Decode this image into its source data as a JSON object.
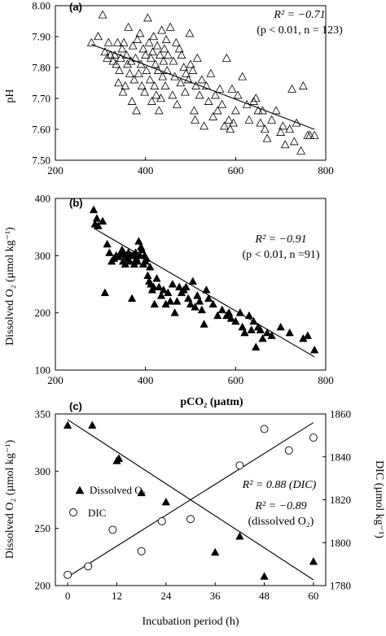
{
  "chart_data": [
    {
      "type": "scatter",
      "panel_label": "(a)",
      "xlim": [
        200,
        800
      ],
      "ylim": [
        7.5,
        8.0
      ],
      "xticks": [
        "200",
        "400",
        "600",
        "800"
      ],
      "yticks": [
        "7.50",
        "7.60",
        "7.70",
        "7.80",
        "7.90",
        "8.00"
      ],
      "ylabel": "pH",
      "annotations": [
        "R² = −0.71",
        "(p < 0.01, n = 123)"
      ],
      "fit_line": [
        [
          280,
          7.875
        ],
        [
          775,
          7.6
        ]
      ],
      "series": [
        {
          "marker": "open-triangle",
          "points": [
            [
              280,
              7.88
            ],
            [
              295,
              7.9
            ],
            [
              305,
              7.97
            ],
            [
              310,
              7.85
            ],
            [
              315,
              7.83
            ],
            [
              318,
              7.88
            ],
            [
              322,
              7.84
            ],
            [
              328,
              7.82
            ],
            [
              332,
              7.84
            ],
            [
              335,
              7.81
            ],
            [
              338,
              7.88
            ],
            [
              340,
              7.75
            ],
            [
              342,
              7.79
            ],
            [
              345,
              7.83
            ],
            [
              348,
              7.86
            ],
            [
              350,
              7.72
            ],
            [
              352,
              7.88
            ],
            [
              355,
              7.74
            ],
            [
              358,
              7.84
            ],
            [
              360,
              7.81
            ],
            [
              362,
              7.93
            ],
            [
              365,
              7.78
            ],
            [
              368,
              7.82
            ],
            [
              370,
              7.69
            ],
            [
              372,
              7.87
            ],
            [
              375,
              7.76
            ],
            [
              378,
              7.83
            ],
            [
              380,
              7.66
            ],
            [
              382,
              7.89
            ],
            [
              385,
              7.78
            ],
            [
              388,
              7.91
            ],
            [
              390,
              7.81
            ],
            [
              392,
              7.74
            ],
            [
              395,
              7.86
            ],
            [
              398,
              7.72
            ],
            [
              400,
              7.84
            ],
            [
              402,
              7.79
            ],
            [
              405,
              7.96
            ],
            [
              408,
              7.88
            ],
            [
              410,
              7.76
            ],
            [
              412,
              7.83
            ],
            [
              414,
              7.69
            ],
            [
              416,
              7.85
            ],
            [
              418,
              7.9
            ],
            [
              420,
              7.74
            ],
            [
              422,
              7.81
            ],
            [
              424,
              7.71
            ],
            [
              426,
              7.87
            ],
            [
              428,
              7.79
            ],
            [
              430,
              7.66
            ],
            [
              432,
              7.84
            ],
            [
              434,
              7.7
            ],
            [
              436,
              7.92
            ],
            [
              438,
              7.77
            ],
            [
              440,
              7.82
            ],
            [
              442,
              7.86
            ],
            [
              444,
              7.74
            ],
            [
              446,
              7.89
            ],
            [
              448,
              7.79
            ],
            [
              450,
              7.84
            ],
            [
              455,
              7.93
            ],
            [
              460,
              7.71
            ],
            [
              462,
              7.82
            ],
            [
              465,
              7.77
            ],
            [
              468,
              7.88
            ],
            [
              470,
              7.68
            ],
            [
              475,
              7.86
            ],
            [
              478,
              7.75
            ],
            [
              480,
              7.84
            ],
            [
              485,
              7.8
            ],
            [
              488,
              7.72
            ],
            [
              490,
              7.78
            ],
            [
              495,
              7.76
            ],
            [
              498,
              7.91
            ],
            [
              500,
              7.81
            ],
            [
              505,
              7.79
            ],
            [
              508,
              7.66
            ],
            [
              510,
              7.63
            ],
            [
              512,
              7.74
            ],
            [
              515,
              7.83
            ],
            [
              520,
              7.71
            ],
            [
              525,
              7.76
            ],
            [
              530,
              7.61
            ],
            [
              535,
              7.74
            ],
            [
              540,
              7.69
            ],
            [
              545,
              7.78
            ],
            [
              550,
              7.64
            ],
            [
              555,
              7.71
            ],
            [
              560,
              7.66
            ],
            [
              565,
              7.73
            ],
            [
              570,
              7.68
            ],
            [
              575,
              7.61
            ],
            [
              580,
              7.83
            ],
            [
              585,
              7.63
            ],
            [
              588,
              7.6
            ],
            [
              592,
              7.73
            ],
            [
              595,
              7.62
            ],
            [
              600,
              7.66
            ],
            [
              605,
              7.71
            ],
            [
              615,
              7.77
            ],
            [
              625,
              7.68
            ],
            [
              630,
              7.63
            ],
            [
              640,
              7.69
            ],
            [
              645,
              7.7
            ],
            [
              650,
              7.66
            ],
            [
              655,
              7.62
            ],
            [
              660,
              7.66
            ],
            [
              665,
              7.6
            ],
            [
              670,
              7.57
            ],
            [
              680,
              7.63
            ],
            [
              690,
              7.66
            ],
            [
              700,
              7.59
            ],
            [
              705,
              7.61
            ],
            [
              710,
              7.55
            ],
            [
              720,
              7.6
            ],
            [
              725,
              7.73
            ],
            [
              730,
              7.56
            ],
            [
              735,
              7.62
            ],
            [
              745,
              7.53
            ],
            [
              750,
              7.74
            ],
            [
              760,
              7.58
            ],
            [
              765,
              7.58
            ],
            [
              775,
              7.58
            ]
          ]
        }
      ]
    },
    {
      "type": "scatter",
      "panel_label": "(b)",
      "xlim": [
        200,
        800
      ],
      "ylim": [
        100,
        400
      ],
      "xticks": [
        "200",
        "400",
        "600",
        "800"
      ],
      "yticks": [
        "100",
        "200",
        "300",
        "400"
      ],
      "ylabel": "Dissolved O₂ (μmol kg⁻¹)",
      "annotations": [
        "R² = −0.91",
        "(p < 0.01, n =91)"
      ],
      "fit_line": [
        [
          285,
          348
        ],
        [
          775,
          123
        ]
      ],
      "series": [
        {
          "marker": "filled-triangle",
          "points": [
            [
              285,
              380
            ],
            [
              288,
              355
            ],
            [
              292,
              365
            ],
            [
              295,
              352
            ],
            [
              305,
              360
            ],
            [
              310,
              235
            ],
            [
              315,
              320
            ],
            [
              320,
              305
            ],
            [
              325,
              290
            ],
            [
              330,
              295
            ],
            [
              335,
              300
            ],
            [
              340,
              298
            ],
            [
              345,
              302
            ],
            [
              348,
              310
            ],
            [
              350,
              290
            ],
            [
              352,
              305
            ],
            [
              355,
              285
            ],
            [
              358,
              300
            ],
            [
              360,
              295
            ],
            [
              362,
              305
            ],
            [
              365,
              290
            ],
            [
              368,
              300
            ],
            [
              370,
              225
            ],
            [
              372,
              300
            ],
            [
              375,
              285
            ],
            [
              378,
              305
            ],
            [
              380,
              295
            ],
            [
              382,
              290
            ],
            [
              385,
              325
            ],
            [
              388,
              300
            ],
            [
              390,
              315
            ],
            [
              392,
              310
            ],
            [
              395,
              285
            ],
            [
              398,
              300
            ],
            [
              400,
              290
            ],
            [
              402,
              295
            ],
            [
              405,
              265
            ],
            [
              408,
              255
            ],
            [
              410,
              280
            ],
            [
              412,
              250
            ],
            [
              415,
              240
            ],
            [
              418,
              245
            ],
            [
              420,
              215
            ],
            [
              425,
              260
            ],
            [
              430,
              245
            ],
            [
              435,
              230
            ],
            [
              440,
              240
            ],
            [
              445,
              215
            ],
            [
              450,
              235
            ],
            [
              455,
              220
            ],
            [
              460,
              250
            ],
            [
              465,
              200
            ],
            [
              470,
              220
            ],
            [
              475,
              245
            ],
            [
              480,
              235
            ],
            [
              485,
              240
            ],
            [
              490,
              245
            ],
            [
              495,
              225
            ],
            [
              500,
              215
            ],
            [
              505,
              255
            ],
            [
              510,
              210
            ],
            [
              515,
              230
            ],
            [
              520,
              220
            ],
            [
              525,
              205
            ],
            [
              530,
              180
            ],
            [
              535,
              240
            ],
            [
              540,
              225
            ],
            [
              550,
              215
            ],
            [
              560,
              195
            ],
            [
              570,
              205
            ],
            [
              580,
              195
            ],
            [
              585,
              200
            ],
            [
              590,
              190
            ],
            [
              600,
              185
            ],
            [
              610,
              200
            ],
            [
              615,
              175
            ],
            [
              620,
              165
            ],
            [
              630,
              195
            ],
            [
              635,
              170
            ],
            [
              640,
              185
            ],
            [
              645,
              140
            ],
            [
              650,
              175
            ],
            [
              655,
              170
            ],
            [
              660,
              155
            ],
            [
              670,
              165
            ],
            [
              680,
              160
            ],
            [
              700,
              175
            ],
            [
              720,
              165
            ],
            [
              750,
              155
            ],
            [
              760,
              160
            ],
            [
              775,
              135
            ]
          ]
        }
      ]
    },
    {
      "type": "scatter",
      "panel_label": "(c)",
      "title": "pCO₂ (µatm)",
      "xlabel": "Incubation period (h)",
      "xlim": [
        -3,
        63
      ],
      "ylim_left": [
        200,
        350
      ],
      "ylim_right": [
        1780,
        1860
      ],
      "xticks": [
        "0",
        "12",
        "24",
        "36",
        "48",
        "60"
      ],
      "yticks_left": [
        "200",
        "250",
        "300",
        "350"
      ],
      "yticks_right": [
        "1780",
        "1800",
        "1820",
        "1840",
        "1860"
      ],
      "ylabel_left": "Dissolved O₂ (µmol kg⁻¹)",
      "ylabel_right": "DIC (µmol kg⁻¹)",
      "legend": [
        "Dissolved O₂",
        "DIC"
      ],
      "annotations": [
        "R² = 0.88 (DIC)",
        "R² = −0.89",
        "(dissolved O₂)"
      ],
      "fit_o2": [
        [
          0,
          345
        ],
        [
          60,
          205
        ]
      ],
      "fit_dic": [
        [
          0,
          1784
        ],
        [
          60,
          1856
        ]
      ],
      "series": [
        {
          "name": "Dissolved O₂",
          "marker": "filled-triangle",
          "axis": "left",
          "points": [
            [
              0,
              340
            ],
            [
              6,
              340
            ],
            [
              12,
              309
            ],
            [
              12.5,
              311
            ],
            [
              18,
              281
            ],
            [
              24,
              273
            ],
            [
              36,
              229
            ],
            [
              42,
              243
            ],
            [
              48,
              208
            ],
            [
              60,
              221
            ]
          ]
        },
        {
          "name": "DIC",
          "marker": "open-circle",
          "axis": "right",
          "points": [
            [
              0,
              1785
            ],
            [
              5,
              1789
            ],
            [
              11,
              1806
            ],
            [
              18,
              1796
            ],
            [
              23,
              1810
            ],
            [
              30,
              1811
            ],
            [
              42,
              1836
            ],
            [
              48,
              1853
            ],
            [
              54,
              1843
            ],
            [
              60,
              1849
            ]
          ]
        }
      ]
    }
  ]
}
